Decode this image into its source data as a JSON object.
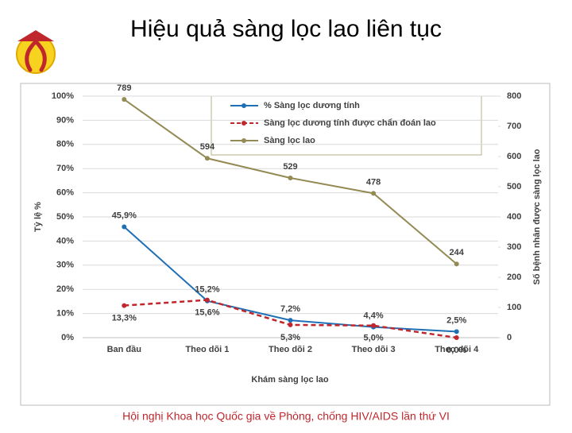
{
  "title": "Hiệu quả sàng lọc lao liên tục",
  "footer": "Hội nghị Khoa học Quốc gia về Phòng, chống HIV/AIDS lần thứ VI",
  "chart_data": {
    "type": "line",
    "x_label": "Khám sàng lọc lao",
    "y_label": "Tỷ lệ %",
    "y2_label": "Số bệnh nhân được sàng lọc lao",
    "categories": [
      "Ban đầu",
      "Theo dõi 1",
      "Theo dõi 2",
      "Theo dõi 3",
      "Theo dõi 4"
    ],
    "series": [
      {
        "name": "% Sàng lọc dương tính",
        "color": "#1f6fb5",
        "dashed": false,
        "values": [
          45.9,
          15.2,
          7.2,
          4.4,
          2.5
        ],
        "value_labels": [
          "45,9%",
          "15,2%",
          "7,2%",
          "4,4%",
          "2,5%"
        ]
      },
      {
        "name": "Sàng lọc dương tính được chẩn đoán lao",
        "color": "#c0272d",
        "dashed": true,
        "values": [
          13.3,
          15.6,
          5.3,
          5.0,
          0.0
        ],
        "value_labels": [
          "13,3%",
          "15,6%",
          "5,3%",
          "5,0%",
          "0,0%"
        ]
      },
      {
        "name": "Sàng lọc lao",
        "color": "#948a54",
        "dashed": false,
        "axis": "y2",
        "values": [
          789,
          594,
          529,
          478,
          244
        ]
      }
    ],
    "ylim": [
      0,
      100
    ],
    "yticks": [
      {
        "value": 0,
        "label": "0%"
      },
      {
        "value": 10,
        "label": "10%"
      },
      {
        "value": 20,
        "label": "20%"
      },
      {
        "value": 30,
        "label": "30%"
      },
      {
        "value": 40,
        "label": "40%"
      },
      {
        "value": 50,
        "label": "50%"
      },
      {
        "value": 60,
        "label": "60%"
      },
      {
        "value": 70,
        "label": "70%"
      },
      {
        "value": 80,
        "label": "80%"
      },
      {
        "value": 90,
        "label": "90%"
      },
      {
        "value": 100,
        "label": "100%"
      }
    ],
    "y2lim": [
      0,
      800
    ],
    "y2ticks": [
      0,
      100,
      200,
      300,
      400,
      500,
      600,
      700,
      800
    ],
    "grid": true
  }
}
